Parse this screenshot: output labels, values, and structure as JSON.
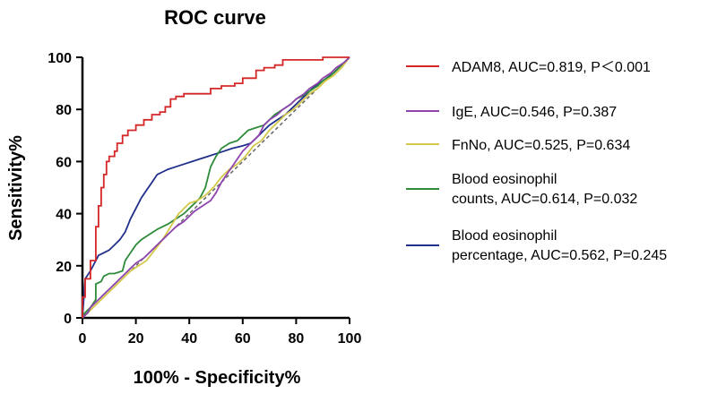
{
  "chart_data": {
    "type": "line",
    "title": "ROC curve",
    "xlabel": "100% - Specificity%",
    "ylabel": "Sensitivity%",
    "xlim": [
      0,
      100
    ],
    "ylim": [
      0,
      100
    ],
    "xticks": [
      "0",
      "20",
      "40",
      "60",
      "80",
      "100"
    ],
    "yticks": [
      "0",
      "20",
      "40",
      "60",
      "80",
      "100"
    ],
    "reference_line": {
      "name": "chance",
      "x": [
        0,
        100
      ],
      "y": [
        0,
        100
      ],
      "color": "#666666",
      "style": "dashed"
    },
    "series": [
      {
        "name": "ADAM8",
        "legend_lines": [
          "ADAM8, AUC=0.819, P＜0.001"
        ],
        "color": "#d62728",
        "x": [
          0,
          0,
          1,
          1,
          3,
          3,
          5,
          5,
          6,
          6,
          7,
          7,
          8,
          8,
          9,
          9,
          10,
          10,
          12,
          12,
          13,
          13,
          15,
          15,
          17,
          17,
          20,
          20,
          23,
          23,
          26,
          26,
          29,
          29,
          31,
          31,
          33,
          33,
          35,
          35,
          38,
          38,
          48,
          48,
          52,
          52,
          57,
          57,
          60,
          60,
          65,
          65,
          68,
          68,
          72,
          72,
          75,
          75,
          90,
          90,
          100
        ],
        "y": [
          0,
          8,
          8,
          15,
          15,
          22,
          22,
          35,
          35,
          43,
          43,
          50,
          50,
          55,
          55,
          60,
          60,
          62,
          62,
          64,
          64,
          67,
          67,
          70,
          70,
          72,
          72,
          74,
          74,
          76,
          76,
          78,
          78,
          79,
          79,
          81,
          81,
          84,
          84,
          85,
          85,
          86,
          86,
          88,
          88,
          89,
          89,
          90,
          90,
          92,
          92,
          95,
          95,
          96,
          96,
          97,
          97,
          99,
          99,
          100,
          100
        ]
      },
      {
        "name": "IgE",
        "legend_lines": [
          "IgE, AUC=0.546, P=0.387"
        ],
        "color": "#8e44ad",
        "x": [
          0,
          2,
          3,
          5,
          6,
          8,
          10,
          12,
          14,
          16,
          18,
          20,
          23,
          25,
          28,
          30,
          33,
          35,
          38,
          40,
          42,
          45,
          48,
          50,
          52,
          54,
          56,
          58,
          60,
          62,
          64,
          66,
          68,
          70,
          73,
          75,
          78,
          80,
          83,
          85,
          88,
          90,
          93,
          95,
          98,
          100
        ],
        "y": [
          0,
          2,
          4,
          6,
          7,
          9,
          11,
          13,
          15,
          17,
          19,
          21,
          23,
          25,
          28,
          30,
          33,
          35,
          37,
          39,
          41,
          43,
          45,
          48,
          52,
          55,
          58,
          61,
          64,
          66,
          68,
          70,
          74,
          76,
          78,
          80,
          82,
          84,
          86,
          88,
          90,
          92,
          94,
          96,
          98,
          100
        ]
      },
      {
        "name": "FnNo",
        "legend_lines": [
          "FnNo, AUC=0.525, P=0.634"
        ],
        "color": "#d4c84a",
        "x": [
          0,
          3,
          6,
          9,
          12,
          15,
          18,
          21,
          24,
          27,
          30,
          33,
          36,
          38,
          40,
          43,
          46,
          49,
          52,
          55,
          58,
          61,
          64,
          67,
          70,
          73,
          76,
          79,
          82,
          85,
          88,
          91,
          94,
          97,
          100
        ],
        "y": [
          0,
          3,
          6,
          9,
          12,
          15,
          18,
          20,
          22,
          26,
          30,
          35,
          40,
          42,
          44,
          45,
          47,
          50,
          54,
          57,
          59,
          62,
          66,
          68,
          72,
          75,
          78,
          80,
          83,
          86,
          88,
          91,
          93,
          96,
          100
        ]
      },
      {
        "name": "Blood eosinophil counts",
        "legend_lines": [
          "Blood eosinophil",
          "counts, AUC=0.614, P=0.032"
        ],
        "color": "#2e8b3a",
        "x": [
          0,
          1,
          3,
          5,
          5,
          7,
          8,
          10,
          12,
          15,
          16,
          18,
          20,
          22,
          25,
          28,
          30,
          32,
          35,
          38,
          40,
          42,
          44,
          46,
          48,
          50,
          52,
          55,
          58,
          60,
          62,
          65,
          68,
          70,
          72,
          75,
          78,
          80,
          82,
          85,
          88,
          90,
          93,
          96,
          100
        ],
        "y": [
          0,
          2,
          4,
          7,
          13,
          14,
          16,
          17,
          17,
          18,
          22,
          25,
          28,
          30,
          32,
          34,
          35,
          36,
          38,
          40,
          42,
          44,
          46,
          50,
          58,
          62,
          65,
          67,
          68,
          70,
          72,
          73,
          74,
          76,
          78,
          80,
          82,
          84,
          85,
          87,
          89,
          91,
          93,
          96,
          100
        ]
      },
      {
        "name": "Blood eosinophil percentage",
        "legend_lines": [
          "Blood eosinophil",
          "percentage, AUC=0.562, P=0.245"
        ],
        "color": "#1f2f8a",
        "x": [
          0,
          1,
          3,
          5,
          6,
          8,
          10,
          12,
          14,
          16,
          18,
          20,
          22,
          24,
          26,
          28,
          30,
          32,
          35,
          38,
          41,
          44,
          47,
          50,
          53,
          56,
          60,
          63,
          66,
          68,
          70,
          73,
          76,
          78,
          80,
          83,
          86,
          90,
          94,
          97,
          100
        ],
        "y": [
          0,
          15,
          18,
          22,
          24,
          25,
          26,
          28,
          30,
          33,
          38,
          42,
          46,
          49,
          52,
          55,
          56,
          57,
          58,
          59,
          60,
          61,
          62,
          63,
          64,
          65,
          66,
          67,
          70,
          72,
          74,
          76,
          78,
          80,
          82,
          85,
          88,
          91,
          94,
          97,
          100
        ]
      }
    ],
    "legend_position": "right"
  }
}
